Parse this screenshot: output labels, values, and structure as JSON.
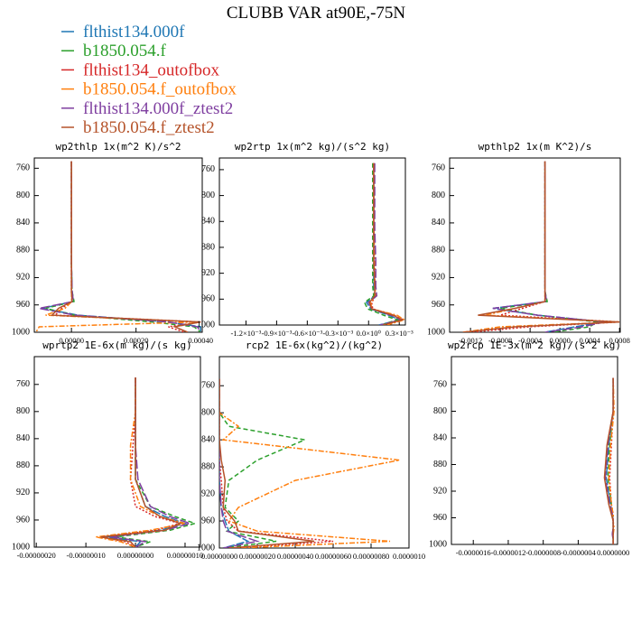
{
  "title": "CLUBB VAR at90E,-75N",
  "legend": [
    {
      "name": "flthist134.000f",
      "color": "#1f77b4",
      "dash": "9,2"
    },
    {
      "name": "b1850.054.f",
      "color": "#2ca02c",
      "dash": "5,3"
    },
    {
      "name": "flthist134_outofbox",
      "color": "#d62728",
      "dash": "2,2"
    },
    {
      "name": "b1850.054.f_outofbox",
      "color": "#ff7f0e",
      "dash": "6,2,2,2"
    },
    {
      "name": "flthist134.000f_ztest2",
      "color": "#7f3fa0",
      "dash": "10,3"
    },
    {
      "name": "b1850.054.f_ztest2",
      "color": "#b5532a",
      "dash": "none"
    }
  ],
  "chart_data": [
    {
      "type": "line",
      "title": "wp2thlp   1x(m^2 K)/s^2",
      "y": [
        750,
        800,
        850,
        900,
        940,
        955,
        965,
        975,
        985,
        992,
        1000
      ],
      "ylim": [
        1000,
        745
      ],
      "yticks": [
        760,
        800,
        840,
        880,
        920,
        960,
        1000
      ],
      "xlim": [
        -0.000115,
        0.000405
      ],
      "xticks": [
        {
          "value": 0,
          "label": "0.00000"
        },
        {
          "value": 0.0002,
          "label": "0.00020"
        },
        {
          "value": 0.0004,
          "label": "0.00040"
        }
      ],
      "series": [
        {
          "values": [
            0,
            0,
            0,
            0,
            2e-06,
            5e-06,
            -9e-05,
            2e-05,
            0.0003,
            0.0004,
            0.0004
          ]
        },
        {
          "values": [
            0,
            0,
            0,
            0,
            2e-06,
            8e-06,
            -8e-05,
            1e-05,
            0.00025,
            0.00038,
            0.0004
          ]
        },
        {
          "values": [
            0,
            0,
            0,
            0,
            0,
            1e-06,
            -3e-05,
            -5e-05,
            0.0004,
            0.0003,
            0.00035
          ]
        },
        {
          "values": [
            0,
            0,
            0,
            0,
            0,
            1e-06,
            -2e-05,
            -8e-05,
            0.00039,
            -0.0001,
            -0.00011
          ]
        },
        {
          "values": [
            0,
            0,
            0,
            0,
            2e-06,
            6e-06,
            -0.0001,
            1e-05,
            0.0003,
            0.00039,
            0.0004
          ]
        },
        {
          "values": [
            0,
            0,
            0,
            0,
            0,
            2e-06,
            -4e-05,
            -6e-05,
            0.0004,
            0.00032,
            0.00036
          ]
        }
      ]
    },
    {
      "type": "line",
      "title": "wp2rtp   1x(m^2 kg)/(s^2 kg)",
      "y": [
        750,
        800,
        850,
        900,
        940,
        955,
        965,
        975,
        985,
        992,
        1000
      ],
      "ylim": [
        1000,
        742
      ],
      "yticks": [
        760,
        800,
        840,
        880,
        920,
        960,
        1000
      ],
      "xlim": [
        -0.00146,
        0.00036
      ],
      "xticks": [
        {
          "value": -0.0012,
          "label": "-1.2×10⁻³"
        },
        {
          "value": -0.0009,
          "label": "-0.9×10⁻³"
        },
        {
          "value": -0.0006,
          "label": "-0.6×10⁻³"
        },
        {
          "value": -0.0003,
          "label": "-0.3×10⁻³"
        },
        {
          "value": 0,
          "label": "0.0×10⁰"
        },
        {
          "value": 0.0003,
          "label": "0.3×10⁻³"
        }
      ],
      "series": [
        {
          "values": [
            5e-05,
            5e-05,
            5e-05,
            5e-05,
            5e-05,
            6e-05,
            -2e-05,
            2e-05,
            0.0002,
            0.0003,
            0.0001
          ]
        },
        {
          "values": [
            4e-05,
            4e-05,
            4e-05,
            4e-05,
            4e-05,
            5e-05,
            -4e-05,
            -1e-05,
            0.00015,
            0.00028,
            0.00012
          ]
        },
        {
          "values": [
            5e-05,
            5e-05,
            5e-05,
            6e-05,
            6e-05,
            7e-05,
            3e-05,
            4e-05,
            0.00025,
            0.00034,
            0.00015
          ]
        },
        {
          "values": [
            5e-05,
            5e-05,
            5e-05,
            6e-05,
            6e-05,
            7e-05,
            2e-05,
            3e-05,
            0.00028,
            0.00035,
            0.00018
          ]
        },
        {
          "values": [
            6e-05,
            6e-05,
            6e-05,
            7e-05,
            7e-05,
            8e-05,
            0,
            3e-05,
            0.00022,
            0.00032,
            0.00011
          ]
        },
        {
          "values": [
            5e-05,
            5e-05,
            5e-05,
            5e-05,
            6e-05,
            6e-05,
            1e-05,
            3e-05,
            0.00024,
            0.00033,
            0.00014
          ]
        }
      ]
    },
    {
      "type": "line",
      "title": "wpthlp2   1x(m K^2)/s",
      "y": [
        750,
        800,
        850,
        900,
        940,
        955,
        965,
        975,
        985,
        992,
        1000
      ],
      "ylim": [
        1000,
        745
      ],
      "yticks": [
        760,
        800,
        840,
        880,
        920,
        960,
        1000
      ],
      "xlim": [
        -0.00148,
        0.00081
      ],
      "xticks": [
        {
          "value": -0.0012,
          "label": "-0.0012"
        },
        {
          "value": -0.0008,
          "label": "-0.0008"
        },
        {
          "value": -0.0004,
          "label": "-0.0004"
        },
        {
          "value": 0,
          "label": "0.0000"
        },
        {
          "value": 0.0004,
          "label": "0.0004"
        },
        {
          "value": 0.0008,
          "label": "0.0008"
        }
      ],
      "series": [
        {
          "values": [
            -0.0002,
            -0.0002,
            -0.0002,
            -0.0002,
            -0.0002,
            -0.00018,
            -0.0009,
            -0.0003,
            0.0006,
            0.0002,
            -0.0002
          ]
        },
        {
          "values": [
            -0.0002,
            -0.0002,
            -0.0002,
            -0.0002,
            -0.0002,
            -0.00017,
            -0.0008,
            -0.0003,
            0.0005,
            0.0004,
            -0.0001
          ]
        },
        {
          "values": [
            -0.0002,
            -0.0002,
            -0.0002,
            -0.0002,
            -0.0002,
            -0.0002,
            -0.0005,
            -0.0008,
            0.0008,
            -0.0004,
            -0.0012
          ]
        },
        {
          "values": [
            -0.0002,
            -0.0002,
            -0.0002,
            -0.0002,
            -0.0002,
            -0.0002,
            -0.0006,
            -0.001,
            0.0008,
            -0.0008,
            -0.0013
          ]
        },
        {
          "values": [
            -0.0002,
            -0.0002,
            -0.0002,
            -0.0002,
            -0.0002,
            -0.00018,
            -0.0009,
            -0.0003,
            0.0006,
            0.0003,
            -0.0002
          ]
        },
        {
          "values": [
            -0.0002,
            -0.0002,
            -0.0002,
            -0.0002,
            -0.0002,
            -0.0002,
            -0.0006,
            -0.0011,
            0.0008,
            -0.0006,
            -0.0013
          ]
        }
      ]
    },
    {
      "type": "line",
      "title": "wprtp2   1E-6x(m kg)/(s kg)",
      "y": [
        750,
        800,
        850,
        900,
        940,
        955,
        965,
        975,
        985,
        992,
        1000
      ],
      "ylim": [
        1000,
        719
      ],
      "yticks": [
        760,
        800,
        840,
        880,
        920,
        960,
        1000
      ],
      "xlim": [
        -2.04e-07,
        1.31e-07
      ],
      "xticks": [
        {
          "value": -2e-07,
          "label": "-0.00000020"
        },
        {
          "value": -1e-07,
          "label": "-0.00000010"
        },
        {
          "value": 0,
          "label": "0.00000000"
        },
        {
          "value": 1e-07,
          "label": "0.00000010"
        }
      ],
      "series": [
        {
          "values": [
            0,
            0,
            0,
            0,
            2e-08,
            6e-08,
            1e-07,
            5e-08,
            -6e-08,
            1e-08,
            0
          ]
        },
        {
          "values": [
            0,
            0,
            0,
            0,
            3e-08,
            8e-08,
            1.2e-07,
            7e-08,
            -4e-08,
            3e-08,
            0
          ]
        },
        {
          "values": [
            0,
            0,
            -5e-09,
            -1e-08,
            0,
            4e-08,
            9e-08,
            4e-08,
            -7e-08,
            -2e-08,
            0
          ]
        },
        {
          "values": [
            0,
            0,
            -1e-08,
            -1e-08,
            1e-08,
            5e-08,
            1e-07,
            3e-08,
            -8e-08,
            -3e-08,
            0
          ]
        },
        {
          "values": [
            0,
            0,
            0,
            5e-09,
            3e-08,
            7e-08,
            1.1e-07,
            6e-08,
            -5e-08,
            2e-08,
            0
          ]
        },
        {
          "values": [
            0,
            0,
            0,
            0,
            2e-08,
            5e-08,
            9e-08,
            6e-08,
            -7e-08,
            -1e-08,
            0
          ]
        }
      ]
    },
    {
      "type": "line",
      "title": "rcp2   1E-6x(kg^2)/(kg^2)",
      "y": [
        750,
        800,
        820,
        840,
        870,
        900,
        940,
        960,
        975,
        990,
        1000
      ],
      "ylim": [
        1000,
        717
      ],
      "yticks": [
        760,
        800,
        840,
        880,
        920,
        960,
        1000
      ],
      "xlim": [
        0,
        1e-06
      ],
      "xticks": [
        {
          "value": 0,
          "label": "0.00000000"
        },
        {
          "value": 2e-07,
          "label": "0.00000020"
        },
        {
          "value": 4e-07,
          "label": "0.00000040"
        },
        {
          "value": 6e-07,
          "label": "0.00000060"
        },
        {
          "value": 8e-07,
          "label": "0.00000080"
        },
        {
          "value": 1e-06,
          "label": "0.0000010"
        }
      ],
      "series": [
        {
          "values": [
            0,
            0,
            0,
            0,
            0,
            0,
            1e-08,
            3e-08,
            5e-08,
            1.5e-07,
            2e-08
          ]
        },
        {
          "values": [
            0,
            0,
            5e-08,
            4.5e-07,
            2e-07,
            5e-08,
            3e-08,
            1e-07,
            4e-08,
            3e-07,
            2e-08
          ]
        },
        {
          "values": [
            0,
            0,
            0,
            0,
            0,
            1e-08,
            2e-08,
            4e-08,
            1e-07,
            6e-07,
            1e-07
          ]
        },
        {
          "values": [
            0,
            0,
            1e-07,
            2e-08,
            9.5e-07,
            4e-07,
            1e-07,
            5e-08,
            2e-07,
            9e-07,
            1e-07
          ]
        },
        {
          "values": [
            0,
            0,
            0,
            0,
            0,
            0,
            1e-08,
            2e-08,
            4e-08,
            2e-07,
            2e-08
          ]
        },
        {
          "values": [
            0,
            0,
            0,
            0,
            1e-08,
            3e-08,
            2e-08,
            8e-08,
            1e-07,
            5e-07,
            5e-08
          ]
        }
      ]
    },
    {
      "type": "line",
      "title": "wp2rcp   1E-3x(m^2 kg)/(s^2 kg)",
      "y": [
        750,
        800,
        850,
        900,
        940,
        955,
        965,
        975,
        985,
        992,
        1000
      ],
      "ylim": [
        1000,
        718
      ],
      "yticks": [
        760,
        800,
        840,
        880,
        920,
        960,
        1000
      ],
      "xlim": [
        -1.85e-06,
        5e-08
      ],
      "xticks": [
        {
          "value": -1.6e-06,
          "label": "-0.0000016"
        },
        {
          "value": -1.2e-06,
          "label": "-0.0000012"
        },
        {
          "value": -8e-07,
          "label": "-0.0000008"
        },
        {
          "value": -4e-07,
          "label": "-0.0000004"
        },
        {
          "value": 0,
          "label": "0.0000000"
        }
      ],
      "series": [
        {
          "values": [
            0,
            0,
            -5e-08,
            -8e-08,
            -3e-08,
            -1e-08,
            0,
            0,
            -1e-08,
            0,
            0
          ]
        },
        {
          "values": [
            0,
            0,
            -4e-08,
            -6e-08,
            -2e-08,
            -1e-08,
            0,
            0,
            0,
            0,
            0
          ]
        },
        {
          "values": [
            0,
            0,
            -2e-08,
            -4e-08,
            -2e-08,
            0,
            0,
            0,
            0,
            0,
            0
          ]
        },
        {
          "values": [
            0,
            1e-08,
            -3e-08,
            -5e-08,
            -2e-08,
            0,
            0,
            1e-08,
            0,
            0,
            0
          ]
        },
        {
          "values": [
            0,
            0,
            -6e-08,
            -9e-08,
            -4e-08,
            -1e-08,
            0,
            0,
            -1e-08,
            0,
            0
          ]
        },
        {
          "values": [
            0,
            0,
            -7e-08,
            -1e-07,
            -5e-08,
            -2e-08,
            0,
            0,
            0,
            0,
            0
          ]
        }
      ]
    }
  ]
}
